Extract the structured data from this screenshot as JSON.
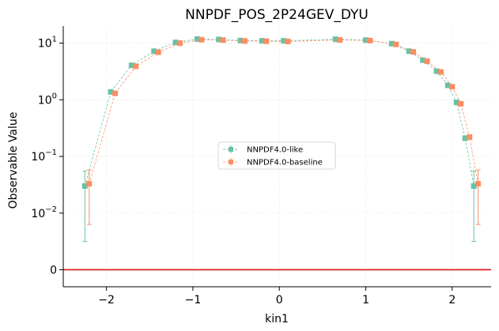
{
  "chart_data": {
    "type": "scatter",
    "title": "NNPDF_POS_2P24GEV_DYU",
    "xlabel": "kin1",
    "ylabel": "Observable Value",
    "y_scale": "symlog",
    "y_linthresh": 0.01,
    "xlim": [
      -2.5,
      2.45
    ],
    "ylim": [
      -0.003,
      20
    ],
    "x_ticks": [
      -2,
      -1,
      0,
      1,
      2
    ],
    "x_tick_labels": [
      "−2",
      "−1",
      "0",
      "1",
      "2"
    ],
    "y_ticks": [
      {
        "value": 0,
        "base": "0",
        "exp": ""
      },
      {
        "value": 0.01,
        "base": "10",
        "exp": "−2"
      },
      {
        "value": 0.1,
        "base": "10",
        "exp": "−1"
      },
      {
        "value": 1,
        "base": "10",
        "exp": "0"
      },
      {
        "value": 10,
        "base": "10",
        "exp": "1"
      }
    ],
    "legend_position": "center",
    "grid": true,
    "zero_line": {
      "value": 0,
      "color": "#dd1111"
    },
    "series": [
      {
        "name": "NNPDF4.0-like",
        "color": "#66c2a5",
        "x": [
          -2.25,
          -1.95,
          -1.71,
          -1.45,
          -1.2,
          -0.95,
          -0.7,
          -0.45,
          -0.2,
          0.05,
          0.65,
          1.0,
          1.3,
          1.5,
          1.66,
          1.82,
          1.95,
          2.05,
          2.15,
          2.25
        ],
        "y": [
          0.03,
          1.38,
          4.05,
          7.2,
          10.3,
          11.8,
          11.6,
          11.1,
          11.0,
          11.0,
          11.7,
          11.3,
          9.8,
          7.2,
          5.0,
          3.2,
          1.8,
          0.9,
          0.21,
          0.03
        ],
        "err": [
          0.025,
          0.08,
          0.2,
          0.35,
          0.5,
          0.55,
          0.55,
          0.5,
          0.5,
          0.5,
          0.55,
          0.5,
          0.45,
          0.35,
          0.25,
          0.15,
          0.1,
          0.05,
          0.015,
          0.025
        ]
      },
      {
        "name": "NNPDF4.0-baseline",
        "color": "#fc8d62",
        "x": [
          -2.2,
          -1.9,
          -1.66,
          -1.4,
          -1.15,
          -0.9,
          -0.65,
          -0.4,
          -0.15,
          0.1,
          0.7,
          1.05,
          1.35,
          1.55,
          1.71,
          1.87,
          2.0,
          2.1,
          2.2,
          2.3
        ],
        "y": [
          0.033,
          1.3,
          3.9,
          6.9,
          10.0,
          11.5,
          11.3,
          10.9,
          10.8,
          10.7,
          11.4,
          11.1,
          9.5,
          7.0,
          4.8,
          3.1,
          1.7,
          0.85,
          0.22,
          0.033
        ],
        "err": [
          0.025,
          0.08,
          0.2,
          0.35,
          0.5,
          0.55,
          0.55,
          0.5,
          0.5,
          0.5,
          0.55,
          0.5,
          0.45,
          0.35,
          0.25,
          0.15,
          0.1,
          0.05,
          0.015,
          0.025
        ]
      }
    ]
  }
}
